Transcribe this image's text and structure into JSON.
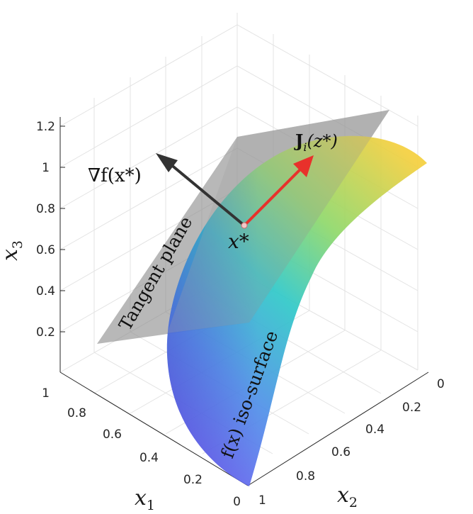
{
  "axes": {
    "x3_ticks": [
      "0.2",
      "0.4",
      "0.6",
      "0.8",
      "1",
      "1.2"
    ],
    "x1_ticks": [
      "1",
      "0.8",
      "0.6",
      "0.4",
      "0.2",
      "0"
    ],
    "x2_ticks": [
      "0",
      "0.2",
      "0.4",
      "0.6",
      "0.8",
      "1"
    ],
    "x1_label_base": "x",
    "x1_label_sub": "1",
    "x2_label_base": "x",
    "x2_label_sub": "2",
    "x3_label_base": "x",
    "x3_label_sub": "3"
  },
  "annotations": {
    "gradient_label": "∇f(x*)",
    "jacobian_label_bold": "J",
    "jacobian_label_sub": "i",
    "jacobian_label_rest": "(z*)",
    "point_label": "x*",
    "tangent_plane_label": "Tangent plane",
    "isosurface_label": "f(x) iso-surface"
  },
  "colors": {
    "surface_top": "#f5d03a",
    "surface_mid": "#2fc7c6",
    "surface_bottom": "#6b63f2",
    "plane": "#9b9b9b",
    "gradient_arrow": "#333333",
    "jacobian_arrow": "#e8312b"
  }
}
